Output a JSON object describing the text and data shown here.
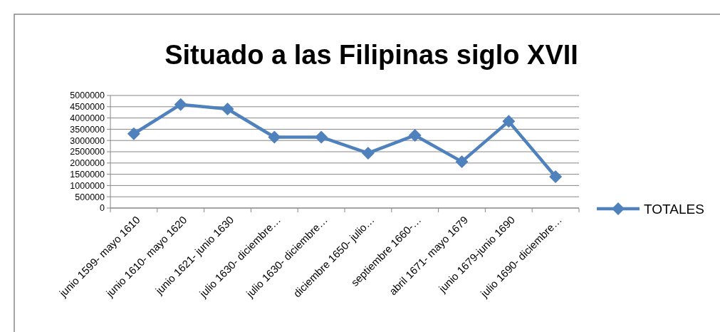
{
  "chart_data": {
    "type": "line",
    "title": "Situado a las Filipinas siglo XVII",
    "categories": [
      "junio 1599- mayo 1610",
      "junio 1610- mayo 1620",
      "junio 1621- junio 1630",
      "julio 1630- diciembre…",
      "julio 1630- diciembre…",
      "diciembre 1650- julio…",
      "septiembre 1660-…",
      "abril 1671- mayo 1679",
      "junio 1679-junio 1690",
      "julio 1690- diciembre…"
    ],
    "series": [
      {
        "name": "TOTALES",
        "color": "#4f81bd",
        "values": [
          3300000,
          4600000,
          4400000,
          3150000,
          3150000,
          2440000,
          3230000,
          2060000,
          3850000,
          1390000
        ]
      }
    ],
    "ylim": [
      0,
      5000000
    ],
    "yticks": [
      0,
      500000,
      1000000,
      1500000,
      2000000,
      2500000,
      3000000,
      3500000,
      4000000,
      4500000,
      5000000
    ],
    "grid": "y",
    "legend": "right",
    "marker": "diamond",
    "line_style": "solid"
  }
}
